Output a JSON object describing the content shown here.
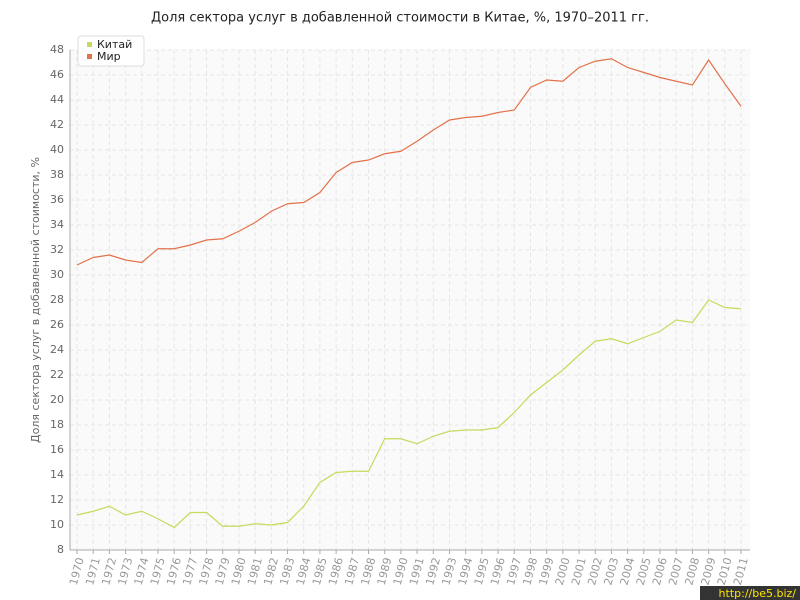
{
  "chart_data": {
    "type": "line",
    "title": "Доля сектора услуг в добавленной стоимости в Китае, %, 1970–2011 гг.",
    "y_label": "Доля сектора услуг в добавленной стоимости, %",
    "watermark": "http://be5.biz/",
    "categories": [
      "1970",
      "1971",
      "1972",
      "1973",
      "1974",
      "1975",
      "1976",
      "1977",
      "1978",
      "1979",
      "1980",
      "1981",
      "1982",
      "1983",
      "1984",
      "1985",
      "1986",
      "1987",
      "1988",
      "1989",
      "1990",
      "1991",
      "1992",
      "1993",
      "1994",
      "1995",
      "1996",
      "1997",
      "1998",
      "1999",
      "2000",
      "2001",
      "2002",
      "2003",
      "2004",
      "2005",
      "2006",
      "2007",
      "2008",
      "2009",
      "2010",
      "2011"
    ],
    "series": [
      {
        "name": "Китай",
        "color": "#c2dc5c",
        "values": [
          10.8,
          11.1,
          11.5,
          10.8,
          11.1,
          10.5,
          9.8,
          11.0,
          11.0,
          9.9,
          9.9,
          10.1,
          10.0,
          10.2,
          11.5,
          13.4,
          14.2,
          14.3,
          14.3,
          16.9,
          16.9,
          16.5,
          17.1,
          17.5,
          17.6,
          17.6,
          17.8,
          19.0,
          20.4,
          21.4,
          22.4,
          23.6,
          24.7,
          24.9,
          24.5,
          25.0,
          25.5,
          26.4,
          26.2,
          28.0,
          27.4,
          27.3
        ]
      },
      {
        "name": "Мир",
        "color": "#e2724a",
        "values": [
          30.8,
          31.4,
          31.6,
          31.2,
          31.0,
          32.1,
          32.1,
          32.4,
          32.8,
          32.9,
          33.5,
          34.2,
          35.1,
          35.7,
          35.8,
          36.6,
          38.2,
          39.0,
          39.2,
          39.7,
          39.9,
          40.7,
          41.6,
          42.4,
          42.6,
          42.7,
          43.0,
          43.2,
          45.0,
          45.6,
          45.5,
          46.6,
          47.1,
          47.3,
          46.6,
          46.2,
          45.8,
          45.5,
          45.2,
          47.2,
          45.3,
          43.5
        ]
      }
    ],
    "ylim": [
      8,
      48
    ],
    "yticks": [
      8,
      10,
      12,
      14,
      16,
      18,
      20,
      22,
      24,
      26,
      28,
      30,
      32,
      34,
      36,
      38,
      40,
      42,
      44,
      46,
      48
    ],
    "grid": true,
    "legend": "top-left"
  }
}
